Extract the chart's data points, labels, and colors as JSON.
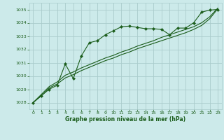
{
  "title": "Graphe pression niveau de la mer (hPa)",
  "bg_color": "#cceaea",
  "grid_color": "#aacccc",
  "line_color": "#1a5c1a",
  "marker_color": "#1a5c1a",
  "xlabel_color": "#1a5c1a",
  "xlim": [
    -0.5,
    23.5
  ],
  "ylim": [
    1027.5,
    1035.5
  ],
  "yticks": [
    1028,
    1029,
    1030,
    1031,
    1032,
    1033,
    1034,
    1035
  ],
  "xticks": [
    0,
    1,
    2,
    3,
    4,
    5,
    6,
    7,
    8,
    9,
    10,
    11,
    12,
    13,
    14,
    15,
    16,
    17,
    18,
    19,
    20,
    21,
    22,
    23
  ],
  "series1_x": [
    0,
    1,
    2,
    3,
    4,
    5,
    6,
    7,
    8,
    9,
    10,
    11,
    12,
    13,
    14,
    15,
    16,
    17,
    18,
    19,
    20,
    21,
    22,
    23
  ],
  "series1_y": [
    1028.0,
    1028.5,
    1029.0,
    1029.3,
    1030.9,
    1029.8,
    1031.5,
    1032.5,
    1032.65,
    1033.1,
    1033.4,
    1033.7,
    1033.75,
    1033.65,
    1033.55,
    1033.55,
    1033.5,
    1033.1,
    1033.6,
    1033.6,
    1034.0,
    1034.8,
    1034.95,
    1035.0
  ],
  "series2_x": [
    0,
    1,
    2,
    3,
    4,
    5,
    6,
    7,
    8,
    9,
    10,
    11,
    12,
    13,
    14,
    15,
    16,
    17,
    18,
    19,
    20,
    21,
    22,
    23
  ],
  "series2_y": [
    1028.0,
    1028.5,
    1029.1,
    1029.4,
    1029.85,
    1030.1,
    1030.4,
    1030.65,
    1030.9,
    1031.15,
    1031.35,
    1031.6,
    1031.8,
    1032.05,
    1032.25,
    1032.45,
    1032.65,
    1032.85,
    1033.05,
    1033.25,
    1033.5,
    1033.8,
    1034.3,
    1035.05
  ],
  "series3_x": [
    0,
    1,
    2,
    3,
    4,
    5,
    6,
    7,
    8,
    9,
    10,
    11,
    12,
    13,
    14,
    15,
    16,
    17,
    18,
    19,
    20,
    21,
    22,
    23
  ],
  "series3_y": [
    1028.0,
    1028.6,
    1029.2,
    1029.55,
    1030.05,
    1030.3,
    1030.6,
    1030.85,
    1031.1,
    1031.35,
    1031.55,
    1031.8,
    1032.0,
    1032.25,
    1032.45,
    1032.65,
    1032.9,
    1033.1,
    1033.3,
    1033.5,
    1033.7,
    1034.0,
    1034.45,
    1035.1
  ]
}
